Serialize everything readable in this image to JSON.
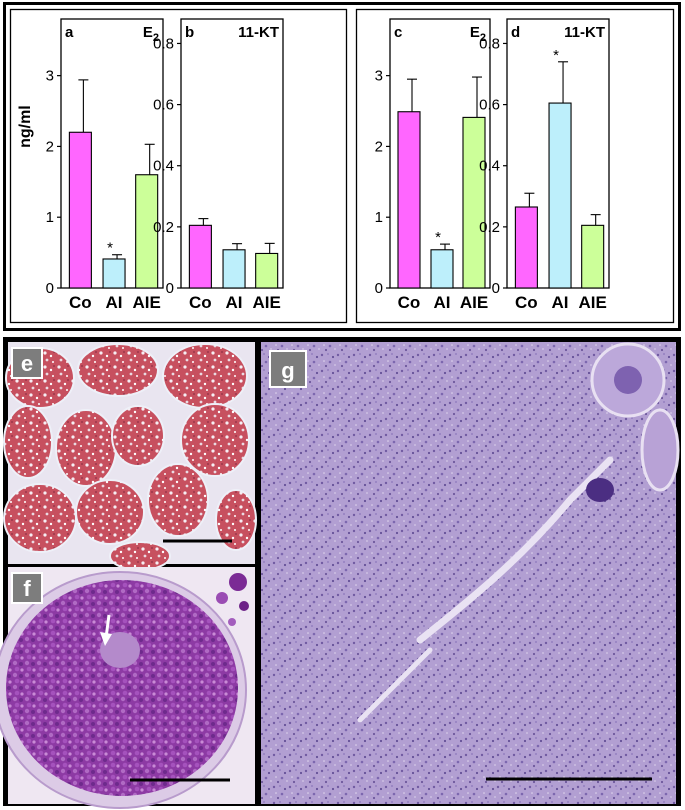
{
  "figure": {
    "ylabel": "ng/ml",
    "categories": [
      "Co",
      "AI",
      "AIE"
    ],
    "bar_colors": [
      "#ff66ff",
      "#bdeffb",
      "#ccff99"
    ],
    "photo_labels": [
      "e",
      "f",
      "g"
    ]
  },
  "chart_data": [
    {
      "type": "bar",
      "letter": "a",
      "title": "E",
      "title_sub": "2",
      "ylabel": "ng/ml",
      "categories": [
        "Co",
        "AI",
        "AIE"
      ],
      "values": [
        2.2,
        0.41,
        1.6
      ],
      "errors": [
        0.74,
        0.06,
        0.43
      ],
      "significant": [
        false,
        true,
        false
      ],
      "ylim": [
        0,
        3.8
      ],
      "yticks": [
        "0",
        "1",
        "2",
        "3"
      ],
      "ytick_values": [
        0,
        1,
        2,
        3
      ]
    },
    {
      "type": "bar",
      "letter": "b",
      "title": "11-KT",
      "title_sub": "",
      "categories": [
        "Co",
        "AI",
        "AIE"
      ],
      "values": [
        0.205,
        0.125,
        0.113
      ],
      "errors": [
        0.022,
        0.02,
        0.033
      ],
      "significant": [
        false,
        false,
        false
      ],
      "ylim": [
        0,
        0.88
      ],
      "yticks": [
        "0",
        "0.2",
        "0.4",
        "0.6",
        "0.8"
      ],
      "ytick_values": [
        0,
        0.2,
        0.4,
        0.6,
        0.8
      ]
    },
    {
      "type": "bar",
      "letter": "c",
      "title": "E",
      "title_sub": "2",
      "categories": [
        "Co",
        "AI",
        "AIE"
      ],
      "values": [
        2.49,
        0.54,
        2.41
      ],
      "errors": [
        0.46,
        0.08,
        0.57
      ],
      "significant": [
        false,
        true,
        false
      ],
      "ylim": [
        0,
        3.8
      ],
      "yticks": [
        "0",
        "1",
        "2",
        "3"
      ],
      "ytick_values": [
        0,
        1,
        2,
        3
      ]
    },
    {
      "type": "bar",
      "letter": "d",
      "title": "11-KT",
      "title_sub": "",
      "categories": [
        "Co",
        "AI",
        "AIE"
      ],
      "values": [
        0.265,
        0.605,
        0.205
      ],
      "errors": [
        0.045,
        0.135,
        0.035
      ],
      "significant": [
        false,
        true,
        false
      ],
      "ylim": [
        0,
        0.88
      ],
      "yticks": [
        "0",
        "0.2",
        "0.4",
        "0.6",
        "0.8"
      ],
      "ytick_values": [
        0,
        0.2,
        0.4,
        0.6,
        0.8
      ]
    }
  ]
}
